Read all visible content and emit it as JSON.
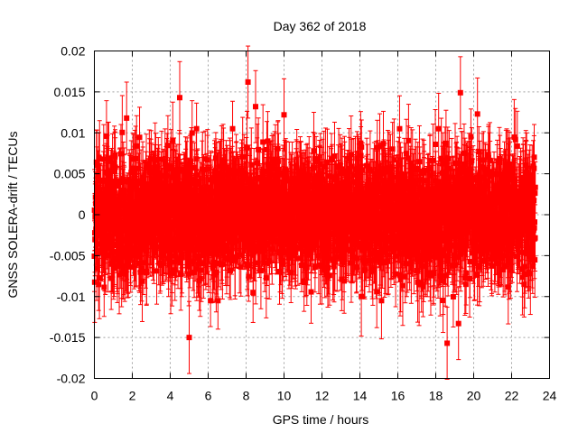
{
  "chart_data": {
    "type": "scatter",
    "title": "Day 362 of 2018",
    "xlabel": "GPS time / hours",
    "ylabel": "GNSS SOLERA-drift / TECUs",
    "xlim": [
      0,
      24
    ],
    "ylim": [
      -0.02,
      0.02
    ],
    "x_ticks": [
      "0",
      "2",
      "4",
      "6",
      "8",
      "10",
      "12",
      "14",
      "16",
      "18",
      "20",
      "22",
      "24"
    ],
    "y_ticks": [
      "0.02",
      "0.015",
      "0.01",
      "0.005",
      "0",
      "-0.005",
      "-0.01",
      "-0.015",
      "-0.02"
    ],
    "grid": true,
    "series": [
      {
        "marker": "square",
        "error_bars": true,
        "color": "#ff0000",
        "x_range": [
          0,
          23.25
        ],
        "sample_interval_hours": 0.0083,
        "y_spread_typical": [
          -0.01,
          0.01
        ],
        "typical_error_bar": 0.004,
        "notable_points": [
          {
            "x": 1.7,
            "y": 0.0118
          },
          {
            "x": 4.5,
            "y": 0.0143
          },
          {
            "x": 5.0,
            "y": -0.015
          },
          {
            "x": 8.1,
            "y": 0.0162
          },
          {
            "x": 8.5,
            "y": 0.0132
          },
          {
            "x": 10.0,
            "y": 0.0122
          },
          {
            "x": 18.6,
            "y": -0.0157
          },
          {
            "x": 19.3,
            "y": 0.0149
          },
          {
            "x": 19.2,
            "y": -0.0133
          },
          {
            "x": 20.2,
            "y": 0.0123
          }
        ]
      }
    ]
  }
}
